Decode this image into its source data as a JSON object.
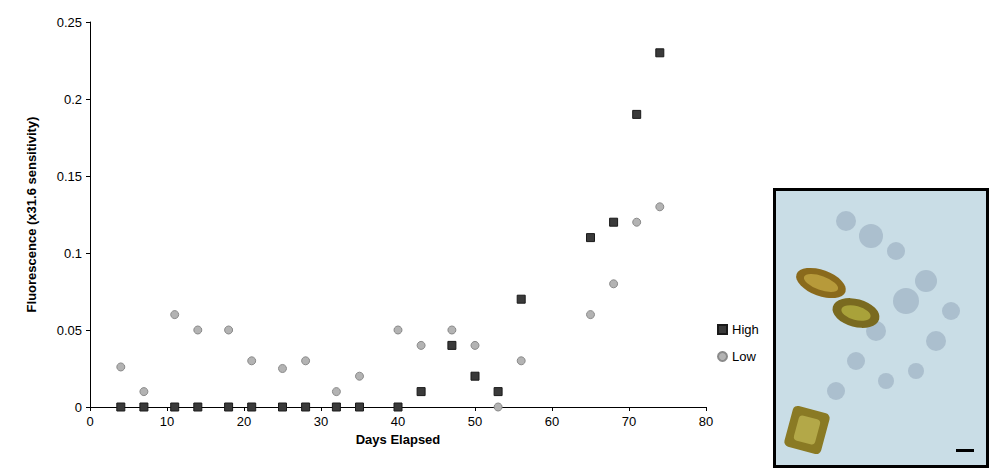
{
  "chart_data": {
    "type": "scatter",
    "x_label": "Days Elapsed",
    "y_label": "Fluorescence (x31.6 sensitivity)",
    "x": [
      4,
      7,
      11,
      14,
      18,
      21,
      25,
      28,
      32,
      35,
      40,
      43,
      47,
      50,
      53,
      56,
      65,
      68,
      71,
      74
    ],
    "series": [
      {
        "name": "High",
        "color": "#3a3a3a",
        "marker": "square",
        "values": [
          0,
          0,
          0,
          0,
          0,
          0,
          0,
          0,
          0,
          0,
          0,
          0.01,
          0.04,
          0.02,
          0.01,
          0.07,
          0.11,
          0.12,
          0.19,
          0.23
        ]
      },
      {
        "name": "Low",
        "color": "#b3b3b3",
        "marker": "circle",
        "values": [
          0.026,
          0.01,
          0.06,
          0.05,
          0.05,
          0.03,
          0.025,
          0.03,
          0.01,
          0.02,
          0.05,
          0.04,
          0.05,
          0.04,
          0,
          0.03,
          0.06,
          0.08,
          0.12,
          0.13
        ]
      }
    ],
    "xlim": [
      0,
      80
    ],
    "xticks": [
      0,
      10,
      20,
      30,
      40,
      50,
      60,
      70,
      80
    ],
    "ylim": [
      0,
      0.25
    ],
    "yticks": [
      0,
      0.05,
      0.1,
      0.15,
      0.2,
      0.25
    ],
    "grid": false,
    "legend": "right"
  }
}
